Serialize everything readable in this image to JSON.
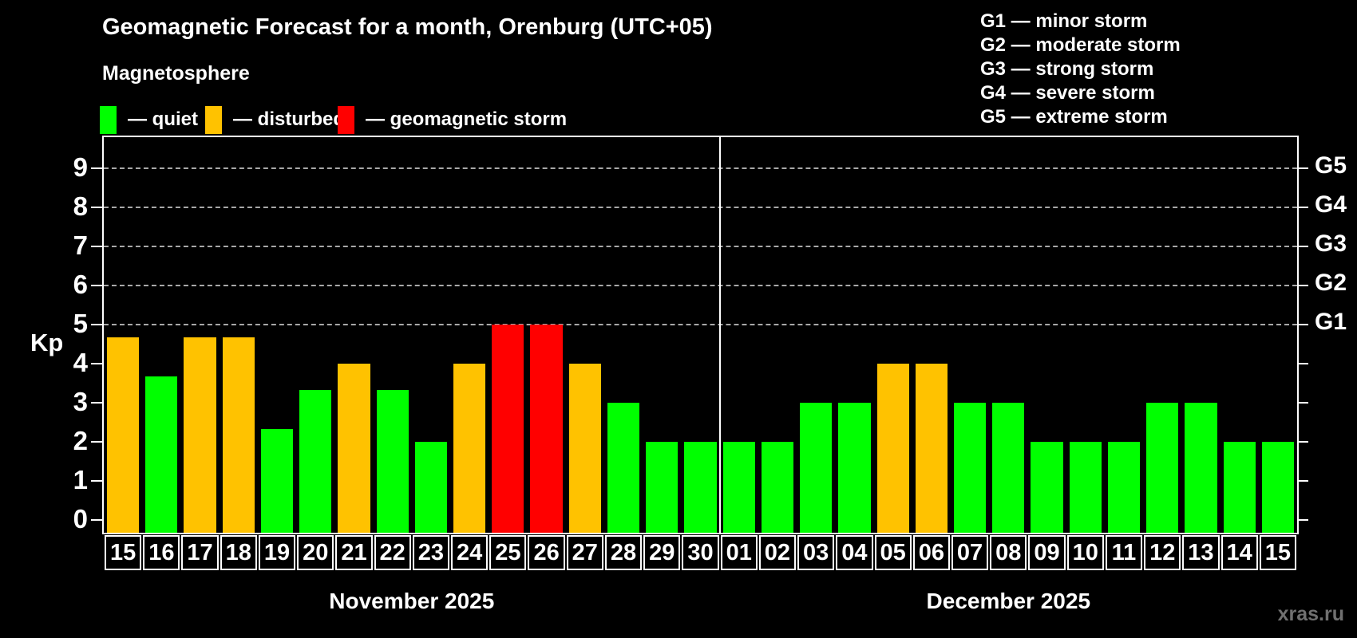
{
  "title": "Geomagnetic Forecast for a month, Orenburg (UTC+05)",
  "subtitle": "Magnetosphere",
  "legend": {
    "items": [
      {
        "label": "— quiet",
        "status": "quiet",
        "color": "#00ff00"
      },
      {
        "label": "— disturbed",
        "status": "disturbed",
        "color": "#ffc200"
      },
      {
        "label": "— geomagnetic storm",
        "status": "storm",
        "color": "#ff0000"
      }
    ]
  },
  "g_legend": [
    "G1 — minor storm",
    "G2 — moderate storm",
    "G3 — strong storm",
    "G4 — severe storm",
    "G5 — extreme storm"
  ],
  "axes": {
    "kp_label": "Kp",
    "left_ticks": [
      "0",
      "1",
      "2",
      "3",
      "4",
      "5",
      "6",
      "7",
      "8",
      "9"
    ],
    "right_labels": [
      {
        "level": 5,
        "label": "G1"
      },
      {
        "level": 6,
        "label": "G2"
      },
      {
        "level": 7,
        "label": "G3"
      },
      {
        "level": 8,
        "label": "G4"
      },
      {
        "level": 9,
        "label": "G5"
      }
    ]
  },
  "watermark": "xras.ru",
  "chart_data": {
    "type": "bar",
    "title": "Geomagnetic Forecast for a month, Orenburg (UTC+05)",
    "ylabel": "Kp",
    "ylim": [
      0,
      9
    ],
    "grid": "dashed horizontal at Kp 5-9 only",
    "legend_position": "top-left",
    "gridline_levels": [
      5,
      6,
      7,
      8,
      9
    ],
    "status_colors": {
      "quiet": "#00ff00",
      "disturbed": "#ffc200",
      "storm": "#ff0000"
    },
    "months": [
      {
        "label": "November 2025",
        "bars": [
          {
            "day": "15",
            "kp": 4.67,
            "status": "disturbed"
          },
          {
            "day": "16",
            "kp": 3.67,
            "status": "quiet"
          },
          {
            "day": "17",
            "kp": 4.67,
            "status": "disturbed"
          },
          {
            "day": "18",
            "kp": 4.67,
            "status": "disturbed"
          },
          {
            "day": "19",
            "kp": 2.33,
            "status": "quiet"
          },
          {
            "day": "20",
            "kp": 3.33,
            "status": "quiet"
          },
          {
            "day": "21",
            "kp": 4.0,
            "status": "disturbed"
          },
          {
            "day": "22",
            "kp": 3.33,
            "status": "quiet"
          },
          {
            "day": "23",
            "kp": 2.0,
            "status": "quiet"
          },
          {
            "day": "24",
            "kp": 4.0,
            "status": "disturbed"
          },
          {
            "day": "25",
            "kp": 5.0,
            "status": "storm"
          },
          {
            "day": "26",
            "kp": 5.0,
            "status": "storm"
          },
          {
            "day": "27",
            "kp": 4.0,
            "status": "disturbed"
          },
          {
            "day": "28",
            "kp": 3.0,
            "status": "quiet"
          },
          {
            "day": "29",
            "kp": 2.0,
            "status": "quiet"
          },
          {
            "day": "30",
            "kp": 2.0,
            "status": "quiet"
          }
        ]
      },
      {
        "label": "December 2025",
        "bars": [
          {
            "day": "01",
            "kp": 2.0,
            "status": "quiet"
          },
          {
            "day": "02",
            "kp": 2.0,
            "status": "quiet"
          },
          {
            "day": "03",
            "kp": 3.0,
            "status": "quiet"
          },
          {
            "day": "04",
            "kp": 3.0,
            "status": "quiet"
          },
          {
            "day": "05",
            "kp": 4.0,
            "status": "disturbed"
          },
          {
            "day": "06",
            "kp": 4.0,
            "status": "disturbed"
          },
          {
            "day": "07",
            "kp": 3.0,
            "status": "quiet"
          },
          {
            "day": "08",
            "kp": 3.0,
            "status": "quiet"
          },
          {
            "day": "09",
            "kp": 2.0,
            "status": "quiet"
          },
          {
            "day": "10",
            "kp": 2.0,
            "status": "quiet"
          },
          {
            "day": "11",
            "kp": 2.0,
            "status": "quiet"
          },
          {
            "day": "12",
            "kp": 3.0,
            "status": "quiet"
          },
          {
            "day": "13",
            "kp": 3.0,
            "status": "quiet"
          },
          {
            "day": "14",
            "kp": 2.0,
            "status": "quiet"
          },
          {
            "day": "15",
            "kp": 2.0,
            "status": "quiet"
          }
        ]
      }
    ]
  }
}
